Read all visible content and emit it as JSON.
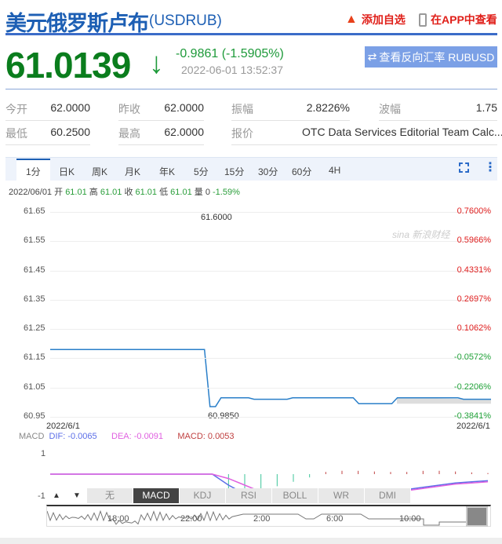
{
  "header": {
    "title": "美元俄罗斯卢布",
    "code": "(USDRUB)",
    "add_watchlist": "添加自选",
    "view_in_app": "在APP中查看"
  },
  "quote": {
    "price": "61.0139",
    "change": "-0.9861 (-1.5905%)",
    "time": "2022-06-01 13:52:37",
    "reverse_button": "查看反向汇率 RUBUSD",
    "direction": "down"
  },
  "stats": [
    {
      "label": "今开",
      "value": "62.0000"
    },
    {
      "label": "昨收",
      "value": "62.0000"
    },
    {
      "label": "振幅",
      "value": "2.8226%"
    },
    {
      "label": "波幅",
      "value": "1.75"
    },
    {
      "label": "最低",
      "value": "60.2500"
    },
    {
      "label": "最高",
      "value": "62.0000"
    },
    {
      "label": "报价",
      "value": "OTC Data Services Editorial Team Calc..."
    }
  ],
  "chart_tabs": [
    "1分",
    "日K",
    "周K",
    "月K",
    "年K",
    "5分",
    "15分",
    "30分",
    "60分",
    "4H"
  ],
  "active_tab": "1分",
  "ohlc": {
    "date": "2022/06/01",
    "open_l": "开",
    "open": "61.01",
    "high_l": "高",
    "high": "61.01",
    "close_l": "收",
    "close": "61.01",
    "low_l": "低",
    "low": "61.01",
    "vol_l": "量",
    "vol": "0",
    "pct": "-1.59%"
  },
  "chart_data": {
    "type": "line",
    "y_ticks": [
      "61.65",
      "61.55",
      "61.45",
      "61.35",
      "61.25",
      "61.15",
      "61.05",
      "60.95"
    ],
    "pct_ticks": [
      "0.7600%",
      "0.5966%",
      "0.4331%",
      "0.2697%",
      "0.1062%",
      "-0.0572%",
      "-0.2206%",
      "-0.3841%"
    ],
    "ylim": [
      60.95,
      61.65
    ],
    "x_start": "2022/6/1",
    "x_end": "2022/6/1",
    "max_label": "61.6000",
    "min_label": "60.9850",
    "line_color": "#2a7fc9",
    "values": [
      61.18,
      61.18,
      61.18,
      61.18,
      61.18,
      61.18,
      61.18,
      61.18,
      61.18,
      61.18,
      61.18,
      61.18,
      61.18,
      61.18,
      61.18,
      61.18,
      61.18,
      61.18,
      61.18,
      61.18,
      61.18,
      61.18,
      61.18,
      61.18,
      61.18,
      61.18,
      61.18,
      61.18,
      61.18,
      60.985,
      60.985,
      61.015,
      61.015,
      61.015,
      61.015,
      61.015,
      61.015,
      61.01,
      61.01,
      61.01,
      61.01,
      61.01,
      61.01,
      61.01,
      61.015,
      61.015,
      61.015,
      61.015,
      61.015,
      61.015,
      61.015,
      61.015,
      61.015,
      61.015,
      61.015,
      61.015,
      60.995,
      60.995,
      60.995,
      60.995,
      60.995,
      60.995,
      60.995,
      61.015,
      61.015,
      61.015,
      61.015,
      61.015,
      61.015,
      61.015,
      61.015,
      61.015,
      61.015,
      61.015,
      61.015,
      61.01,
      61.01,
      61.01,
      61.01,
      61.01,
      61.01
    ]
  },
  "watermark": "sina 新浪财经",
  "macd": {
    "label": "MACD",
    "dif": "DIF: -0.0065",
    "dea": "DEA: -0.0091",
    "macd": "MACD: 0.0053",
    "y_top": "1",
    "y_bottom": "-1",
    "dif_values": [
      0,
      0,
      0,
      0,
      0,
      0,
      0,
      0,
      0,
      0,
      0,
      -0.5,
      -0.9,
      -1.1,
      -1.2,
      -1.25,
      -1.2,
      -1.1,
      -1.0,
      -0.9,
      -0.8,
      -0.75,
      -0.7,
      -0.6,
      -0.5,
      -0.4,
      -0.35,
      -0.3
    ],
    "dea_values": [
      0,
      0,
      0,
      0,
      0,
      0,
      0,
      0,
      0,
      0,
      0,
      -0.2,
      -0.5,
      -0.8,
      -1.0,
      -1.1,
      -1.15,
      -1.1,
      -1.05,
      -0.95,
      -0.85,
      -0.8,
      -0.75,
      -0.65,
      -0.55,
      -0.45,
      -0.4,
      -0.35
    ],
    "hist_values": [
      0,
      0,
      0,
      0,
      0,
      0,
      0,
      0,
      0,
      0,
      0,
      -0.9,
      -0.8,
      -0.7,
      -0.55,
      -0.35,
      -0.15,
      0.1,
      0.15,
      0.15,
      0.12,
      0.1,
      0.1,
      0.15,
      0.15,
      0.12,
      0.08,
      0.05
    ]
  },
  "indicator_tabs": [
    "无",
    "MACD",
    "KDJ",
    "RSI",
    "BOLL",
    "WR",
    "DMI"
  ],
  "active_indicator": "MACD",
  "navigator": {
    "up": "▲",
    "down": "▼",
    "times": [
      "18:00",
      "22:00",
      "2:00",
      "6:00",
      "10:00"
    ]
  }
}
